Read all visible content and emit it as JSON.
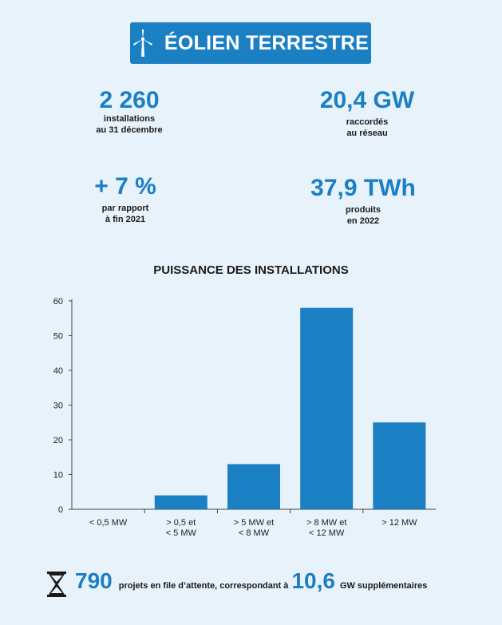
{
  "header": {
    "title": "ÉOLIEN TERRESTRE"
  },
  "stats": {
    "installations": {
      "value": "2 260",
      "label": "installations\nau 31 décembre"
    },
    "capacity": {
      "value": "20,4 GW",
      "label": "raccordés\nau réseau"
    },
    "growth": {
      "value": "+ 7 %",
      "label": "par rapport\nà fin 2021"
    },
    "production": {
      "value": "37,9 TWh",
      "label": "produits\nen 2022"
    }
  },
  "chart_data": {
    "type": "bar",
    "title": "PUISSANCE DES INSTALLATIONS",
    "categories": [
      "< 0,5 MW",
      "> 0,5 et\n< 5 MW",
      "> 5 MW et\n< 8 MW",
      "> 8 MW et\n< 12 MW",
      "> 12 MW"
    ],
    "values": [
      0,
      4,
      13,
      58,
      25
    ],
    "yticks": [
      0,
      10,
      20,
      30,
      40,
      50,
      60
    ],
    "ylim": [
      0,
      60
    ],
    "xlabel": "",
    "ylabel": "",
    "grid": false,
    "bar_color": "#1b7fc4"
  },
  "footer": {
    "projects_value": "790",
    "projects_text": "projets en file d’attente, correspondant à",
    "gw_value": "10,6",
    "gw_text": "GW supplémentaires"
  },
  "colors": {
    "accent": "#1b7fc4",
    "background": "#e8f2fa"
  },
  "icons": {
    "header": "wind-turbine-icon",
    "footer": "hourglass-icon"
  }
}
